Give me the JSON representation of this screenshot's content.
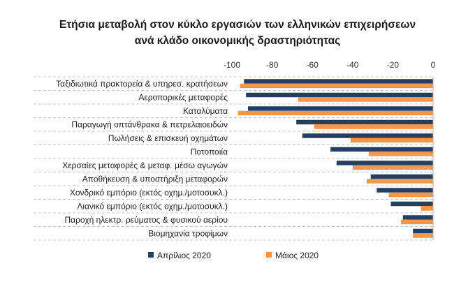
{
  "chart_data": {
    "type": "bar",
    "orientation": "horizontal",
    "title": "Ετήσια μεταβολή στον κύκλο εργασιών των ελληνικών επιχειρήσεων",
    "subtitle": "ανά κλάδο οικονομικής δραστηριότητας",
    "categories": [
      "Ταξιδιωτικά πρακτορεία & υπηρεσ. κρατήσεων",
      "Αεροπορικές μεταφορές",
      "Καταλύματα",
      "Παραγωγή οπτάνθρακα & πετρελαιοειδών",
      "Πωλήσεις & επισκευή οχημάτων",
      "Ποτοποιία",
      "Χερσαίες μεταφορές & μεταφ. μέσω αγωγών",
      "Αποθήκευση & υποστήριξη μεταφορών",
      "Χονδρικό εμπόριο (εκτός οχημ./μοτοσυκλ.)",
      "Λιανικό εμπόριο (εκτός οχημ./μοτοσυκλ.)",
      "Παροχή ηλεκτρ. ρεύματος & φυσικού αερίου",
      "Βιομηχανία τροφίμων"
    ],
    "series": [
      {
        "name": "Απρίλιος 2020",
        "color": "#243F60",
        "values": [
          -94,
          -93,
          -92,
          -68,
          -65,
          -51,
          -48,
          -31,
          -28,
          -21,
          -15,
          -10
        ]
      },
      {
        "name": "Μάιος 2020",
        "color": "#F79646",
        "values": [
          -96,
          -67,
          -97,
          -59,
          -41,
          -32,
          -40,
          -33,
          -22,
          -6,
          -16,
          -10
        ]
      }
    ],
    "xlim": [
      -100,
      0
    ],
    "xticks": [
      -100,
      -80,
      -60,
      -40,
      -20,
      0
    ],
    "xticks_position": "top",
    "grid": "horizontal dashed separators",
    "legend_position": "bottom"
  }
}
